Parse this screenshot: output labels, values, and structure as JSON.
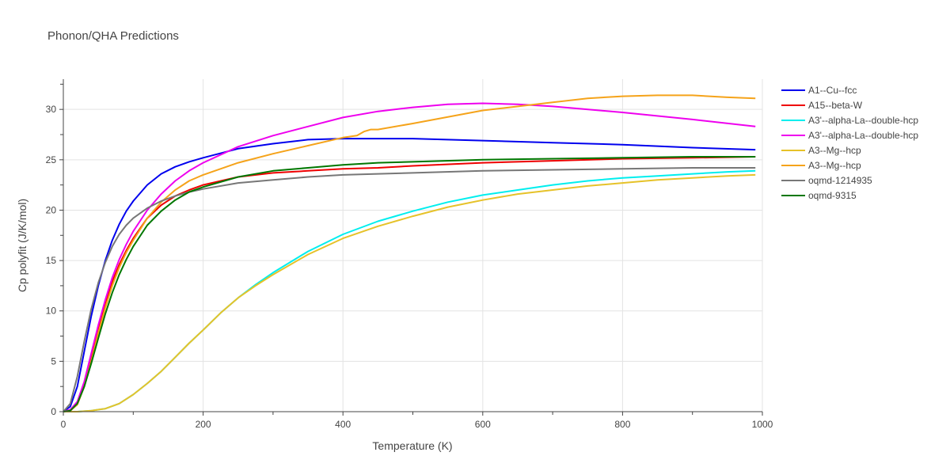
{
  "chart_data": {
    "type": "line",
    "title": "Phonon/QHA Predictions",
    "xlabel": "Temperature (K)",
    "ylabel": "Cp polyfit (J/K/mol)",
    "xlim": [
      0,
      1000
    ],
    "ylim": [
      0,
      33
    ],
    "xticks": [
      0,
      200,
      400,
      600,
      800,
      1000
    ],
    "yticks": [
      0,
      5,
      10,
      15,
      20,
      25,
      30
    ],
    "grid": true,
    "legend_position": "top-right",
    "series": [
      {
        "name": "A1--Cu--fcc",
        "color": "#0000ee",
        "x": [
          0,
          10,
          20,
          30,
          40,
          50,
          60,
          70,
          80,
          90,
          100,
          120,
          140,
          160,
          180,
          200,
          250,
          300,
          350,
          400,
          450,
          500,
          600,
          700,
          800,
          900,
          990
        ],
        "y": [
          0,
          0.5,
          2.5,
          6.0,
          9.5,
          12.5,
          15.0,
          17.0,
          18.6,
          19.9,
          20.9,
          22.5,
          23.6,
          24.3,
          24.8,
          25.2,
          26.1,
          26.6,
          27.0,
          27.1,
          27.1,
          27.1,
          26.9,
          26.7,
          26.5,
          26.2,
          26.0
        ]
      },
      {
        "name": "A15--beta-W",
        "color": "#ee0000",
        "x": [
          0,
          10,
          20,
          30,
          40,
          50,
          60,
          70,
          80,
          90,
          100,
          120,
          140,
          160,
          180,
          200,
          250,
          300,
          350,
          400,
          450,
          500,
          600,
          700,
          800,
          900,
          990
        ],
        "y": [
          0,
          0.1,
          0.8,
          2.8,
          5.5,
          8.3,
          10.8,
          12.9,
          14.6,
          16.0,
          17.2,
          19.2,
          20.5,
          21.4,
          22.0,
          22.5,
          23.3,
          23.7,
          23.9,
          24.1,
          24.2,
          24.4,
          24.7,
          24.9,
          25.1,
          25.2,
          25.3
        ]
      },
      {
        "name": "A3'--alpha-La--double-hcp",
        "color": "#00eeee",
        "x": [
          0,
          20,
          40,
          60,
          80,
          100,
          120,
          140,
          160,
          180,
          200,
          225,
          250,
          275,
          300,
          350,
          400,
          450,
          500,
          550,
          600,
          650,
          700,
          750,
          800,
          850,
          900,
          950,
          990
        ],
        "y": [
          0,
          0.0,
          0.1,
          0.3,
          0.8,
          1.7,
          2.8,
          4.0,
          5.4,
          6.8,
          8.1,
          9.8,
          11.3,
          12.6,
          13.8,
          15.9,
          17.6,
          18.9,
          19.9,
          20.8,
          21.5,
          22.0,
          22.5,
          22.9,
          23.2,
          23.4,
          23.6,
          23.8,
          23.9
        ]
      },
      {
        "name": "A3'--alpha-La--double-hcp",
        "color": "#ee00ee",
        "x": [
          0,
          10,
          20,
          30,
          40,
          50,
          60,
          70,
          80,
          90,
          100,
          120,
          140,
          160,
          180,
          200,
          250,
          300,
          350,
          400,
          450,
          500,
          550,
          600,
          650,
          700,
          800,
          900,
          990
        ],
        "y": [
          0,
          0.2,
          1.0,
          3.0,
          5.8,
          8.6,
          11.1,
          13.3,
          15.1,
          16.6,
          17.9,
          20.0,
          21.6,
          22.9,
          23.9,
          24.7,
          26.3,
          27.4,
          28.3,
          29.2,
          29.8,
          30.2,
          30.5,
          30.6,
          30.5,
          30.3,
          29.7,
          29.0,
          28.3
        ]
      },
      {
        "name": "A3--Mg--hcp",
        "color": "#e6c229",
        "x": [
          0,
          20,
          40,
          60,
          80,
          100,
          120,
          140,
          160,
          180,
          200,
          225,
          250,
          275,
          300,
          350,
          400,
          450,
          500,
          550,
          600,
          650,
          700,
          750,
          800,
          850,
          900,
          950,
          990
        ],
        "y": [
          0,
          0.0,
          0.1,
          0.3,
          0.8,
          1.7,
          2.8,
          4.0,
          5.4,
          6.8,
          8.1,
          9.8,
          11.3,
          12.5,
          13.6,
          15.6,
          17.2,
          18.4,
          19.4,
          20.3,
          21.0,
          21.6,
          22.0,
          22.4,
          22.7,
          23.0,
          23.2,
          23.4,
          23.5
        ]
      },
      {
        "name": "A3--Mg--hcp",
        "color": "#f5a31a",
        "x": [
          0,
          10,
          20,
          30,
          40,
          50,
          60,
          70,
          80,
          90,
          100,
          120,
          140,
          160,
          180,
          200,
          250,
          300,
          350,
          400,
          420,
          430,
          440,
          450,
          500,
          600,
          700,
          750,
          800,
          850,
          900,
          950,
          990
        ],
        "y": [
          0,
          0.1,
          0.7,
          2.5,
          5.0,
          7.8,
          10.3,
          12.5,
          14.3,
          15.8,
          17.0,
          19.2,
          20.8,
          22.0,
          22.9,
          23.5,
          24.7,
          25.6,
          26.4,
          27.2,
          27.4,
          27.8,
          28.0,
          28.0,
          28.6,
          29.9,
          30.7,
          31.1,
          31.3,
          31.4,
          31.4,
          31.2,
          31.1
        ]
      },
      {
        "name": "oqmd-1214935",
        "color": "#777777",
        "x": [
          0,
          10,
          20,
          30,
          40,
          50,
          60,
          70,
          80,
          90,
          100,
          120,
          140,
          160,
          180,
          200,
          250,
          300,
          350,
          400,
          450,
          500,
          600,
          700,
          800,
          900,
          990
        ],
        "y": [
          0,
          0.8,
          3.5,
          7.0,
          10.2,
          12.8,
          14.8,
          16.4,
          17.6,
          18.5,
          19.2,
          20.2,
          20.9,
          21.4,
          21.8,
          22.1,
          22.7,
          23.0,
          23.3,
          23.5,
          23.6,
          23.7,
          23.9,
          24.0,
          24.1,
          24.2,
          24.2
        ]
      },
      {
        "name": "oqmd-9315",
        "color": "#007700",
        "x": [
          0,
          10,
          20,
          30,
          40,
          50,
          60,
          70,
          80,
          90,
          100,
          120,
          140,
          160,
          180,
          200,
          250,
          300,
          350,
          400,
          450,
          500,
          600,
          700,
          800,
          900,
          990
        ],
        "y": [
          0,
          0.1,
          0.8,
          2.5,
          4.8,
          7.3,
          9.7,
          11.8,
          13.6,
          15.1,
          16.4,
          18.5,
          19.9,
          21.0,
          21.8,
          22.3,
          23.3,
          23.9,
          24.2,
          24.5,
          24.7,
          24.8,
          25.0,
          25.1,
          25.2,
          25.3,
          25.3
        ]
      }
    ]
  }
}
